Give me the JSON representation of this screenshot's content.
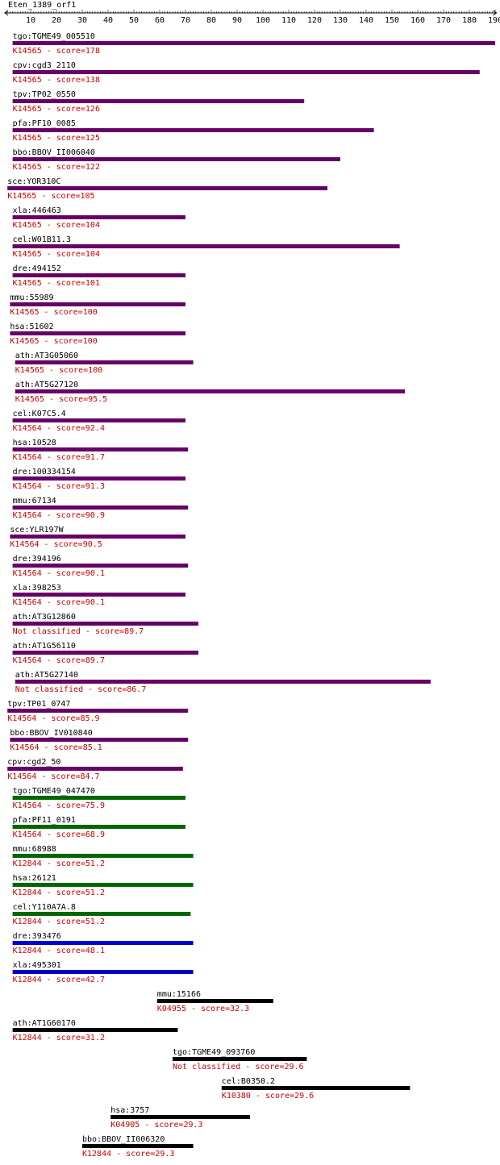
{
  "query": "Eten_1389_orf1",
  "axis": {
    "ticks": [
      10,
      20,
      30,
      40,
      50,
      60,
      70,
      80,
      90,
      100,
      110,
      120,
      130,
      140,
      150,
      160,
      170,
      180,
      190
    ]
  },
  "colors": {
    "text": "#000000",
    "annotation": "#cc0000",
    "score_high": "#660066",
    "score_mid": "#006600",
    "score_low": "#0000cc",
    "score_lowest": "#000000"
  },
  "hits": [
    {
      "gene": "tgo:TGME49_005510",
      "annotation": "K14565 - score=178",
      "start": 3,
      "end": 190,
      "color": "#660066"
    },
    {
      "gene": "cpv:cgd3_2110",
      "annotation": "K14565 - score=138",
      "start": 3,
      "end": 184,
      "color": "#660066"
    },
    {
      "gene": "tpv:TP02_0550",
      "annotation": "K14565 - score=126",
      "start": 3,
      "end": 116,
      "color": "#660066"
    },
    {
      "gene": "pfa:PF10_0085",
      "annotation": "K14565 - score=125",
      "start": 3,
      "end": 143,
      "color": "#660066"
    },
    {
      "gene": "bbo:BBOV_II006040",
      "annotation": "K14565 - score=122",
      "start": 3,
      "end": 130,
      "color": "#660066"
    },
    {
      "gene": "sce:YOR310C",
      "annotation": "K14565 - score=105",
      "start": 1,
      "end": 125,
      "color": "#660066"
    },
    {
      "gene": "xla:446463",
      "annotation": "K14565 - score=104",
      "start": 3,
      "end": 70,
      "color": "#660066"
    },
    {
      "gene": "cel:W01B11.3",
      "annotation": "K14565 - score=104",
      "start": 3,
      "end": 153,
      "color": "#660066"
    },
    {
      "gene": "dre:494152",
      "annotation": "K14565 - score=101",
      "start": 3,
      "end": 70,
      "color": "#660066"
    },
    {
      "gene": "mmu:55989",
      "annotation": "K14565 - score=100",
      "start": 2,
      "end": 70,
      "color": "#660066"
    },
    {
      "gene": "hsa:51602",
      "annotation": "K14565 - score=100",
      "start": 2,
      "end": 70,
      "color": "#660066"
    },
    {
      "gene": "ath:AT3G05060",
      "annotation": "K14565 - score=100",
      "start": 4,
      "end": 73,
      "color": "#660066"
    },
    {
      "gene": "ath:AT5G27120",
      "annotation": "K14565 - score=95.5",
      "start": 4,
      "end": 155,
      "color": "#660066"
    },
    {
      "gene": "cel:K07C5.4",
      "annotation": "K14564 - score=92.4",
      "start": 3,
      "end": 70,
      "color": "#660066"
    },
    {
      "gene": "hsa:10528",
      "annotation": "K14564 - score=91.7",
      "start": 3,
      "end": 71,
      "color": "#660066"
    },
    {
      "gene": "dre:100334154",
      "annotation": "K14564 - score=91.3",
      "start": 3,
      "end": 70,
      "color": "#660066"
    },
    {
      "gene": "mmu:67134",
      "annotation": "K14564 - score=90.9",
      "start": 3,
      "end": 71,
      "color": "#660066"
    },
    {
      "gene": "sce:YLR197W",
      "annotation": "K14564 - score=90.5",
      "start": 2,
      "end": 70,
      "color": "#660066"
    },
    {
      "gene": "dre:394196",
      "annotation": "K14564 - score=90.1",
      "start": 3,
      "end": 71,
      "color": "#660066"
    },
    {
      "gene": "xla:398253",
      "annotation": "K14564 - score=90.1",
      "start": 3,
      "end": 70,
      "color": "#660066"
    },
    {
      "gene": "ath:AT3G12860",
      "annotation": "Not classified - score=89.7",
      "start": 3,
      "end": 75,
      "color": "#660066"
    },
    {
      "gene": "ath:AT1G56110",
      "annotation": "K14564 - score=89.7",
      "start": 3,
      "end": 75,
      "color": "#660066"
    },
    {
      "gene": "ath:AT5G27140",
      "annotation": "Not classified - score=86.7",
      "start": 4,
      "end": 165,
      "color": "#660066"
    },
    {
      "gene": "tpv:TP01_0747",
      "annotation": "K14564 - score=85.9",
      "start": 1,
      "end": 71,
      "color": "#660066"
    },
    {
      "gene": "bbo:BBOV_IV010840",
      "annotation": "K14564 - score=85.1",
      "start": 2,
      "end": 71,
      "color": "#660066"
    },
    {
      "gene": "cpv:cgd2_50",
      "annotation": "K14564 - score=84.7",
      "start": 1,
      "end": 69,
      "color": "#660066"
    },
    {
      "gene": "tgo:TGME49_047470",
      "annotation": "K14564 - score=75.9",
      "start": 3,
      "end": 70,
      "color": "#006600"
    },
    {
      "gene": "pfa:PF11_0191",
      "annotation": "K14564 - score=68.9",
      "start": 3,
      "end": 70,
      "color": "#006600"
    },
    {
      "gene": "mmu:68988",
      "annotation": "K12844 - score=51.2",
      "start": 3,
      "end": 73,
      "color": "#006600"
    },
    {
      "gene": "hsa:26121",
      "annotation": "K12844 - score=51.2",
      "start": 3,
      "end": 73,
      "color": "#006600"
    },
    {
      "gene": "cel:Y110A7A.8",
      "annotation": "K12844 - score=51.2",
      "start": 3,
      "end": 72,
      "color": "#006600"
    },
    {
      "gene": "dre:393476",
      "annotation": "K12844 - score=48.1",
      "start": 3,
      "end": 73,
      "color": "#0000cc"
    },
    {
      "gene": "xla:495301",
      "annotation": "K12844 - score=42.7",
      "start": 3,
      "end": 73,
      "color": "#0000cc"
    },
    {
      "gene": "mmu:15166",
      "annotation": "K04955 - score=32.3",
      "start": 59,
      "end": 104,
      "color": "#000000"
    },
    {
      "gene": "ath:AT1G60170",
      "annotation": "K12844 - score=31.2",
      "start": 3,
      "end": 67,
      "color": "#000000"
    },
    {
      "gene": "tgo:TGME49_093760",
      "annotation": "Not classified - score=29.6",
      "start": 65,
      "end": 117,
      "color": "#000000"
    },
    {
      "gene": "cel:B0350.2",
      "annotation": "K10380 - score=29.6",
      "start": 84,
      "end": 157,
      "color": "#000000"
    },
    {
      "gene": "hsa:3757",
      "annotation": "K04905 - score=29.3",
      "start": 41,
      "end": 95,
      "color": "#000000"
    },
    {
      "gene": "bbo:BBOV_II006320",
      "annotation": "K12844 - score=29.3",
      "start": 30,
      "end": 73,
      "color": "#000000"
    }
  ]
}
